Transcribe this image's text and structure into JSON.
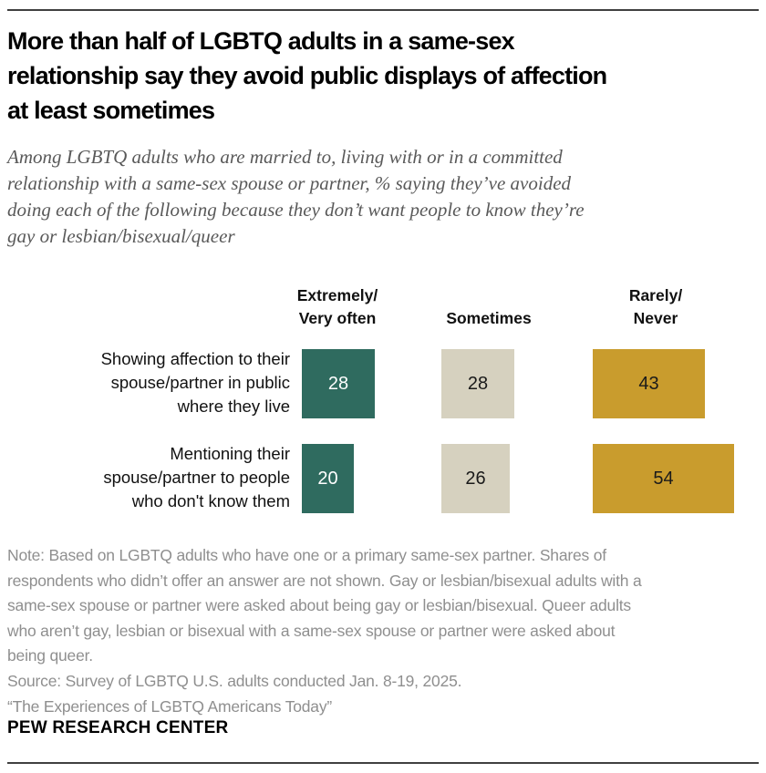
{
  "title": {
    "lines": [
      "More than half of LGBTQ adults in a same-sex",
      "relationship say they avoid public displays of affection",
      "at least sometimes"
    ]
  },
  "subtitle": {
    "lines": [
      "Among LGBTQ adults who are married to, living with or in a committed",
      "relationship with a same-sex spouse or partner, % saying they’ve avoided",
      "doing each of the following because they don’t want people to know they’re",
      "gay or lesbian/bisexual/queer"
    ]
  },
  "chart": {
    "col_headers": [
      {
        "lines": [
          "Extremely/",
          "Very often"
        ]
      },
      {
        "lines": [
          "Sometimes"
        ]
      },
      {
        "lines": [
          "Rarely/",
          "Never"
        ]
      }
    ],
    "rows": [
      {
        "label_lines": [
          "Showing affection to their",
          "spouse/partner in public",
          "where they live"
        ],
        "values": [
          28,
          28,
          43
        ]
      },
      {
        "label_lines": [
          "Mentioning their",
          "spouse/partner to people",
          "who don't know them"
        ],
        "values": [
          20,
          26,
          54
        ]
      }
    ]
  },
  "colors": {
    "extremely_very_often": "#2f6b5f",
    "sometimes": "#d6d1bf",
    "rarely_never": "#c99c2d",
    "value_on_dark": "#ffffff",
    "value_on_light": "#1a1a1a"
  },
  "note": {
    "lines": [
      "Note: Based on LGBTQ adults who have one or a primary same-sex partner. Shares of",
      "respondents who didn’t offer an answer are not shown. Gay or lesbian/bisexual adults with a",
      "same-sex spouse or partner were asked about being gay or lesbian/bisexual. Queer adults",
      "who aren’t gay, lesbian or bisexual with a same-sex spouse or partner were asked about",
      "being queer."
    ]
  },
  "source": {
    "line": "Source: Survey of LGBTQ U.S. adults conducted Jan. 8-19, 2025."
  },
  "quote": {
    "line": "“The Experiences of LGBTQ Americans Today”"
  },
  "footer": {
    "brand": "PEW RESEARCH CENTER"
  },
  "chart_data": {
    "type": "bar",
    "title": "More than half of LGBTQ adults in a same-sex relationship say they avoid public displays of affection at least sometimes",
    "subtitle": "Among LGBTQ adults who are married to, living with or in a committed relationship with a same-sex spouse or partner, % saying they’ve avoided doing each of the following because they don’t want people to know they’re gay or lesbian/bisexual/queer",
    "unit": "%",
    "categories": [
      "Showing affection to their spouse/partner in public where they live",
      "Mentioning their spouse/partner to people who don't know them"
    ],
    "series": [
      {
        "name": "Extremely/Very often",
        "values": [
          28,
          20
        ],
        "color": "#2f6b5f"
      },
      {
        "name": "Sometimes",
        "values": [
          28,
          26
        ],
        "color": "#d6d1bf"
      },
      {
        "name": "Rarely/Never",
        "values": [
          43,
          54
        ],
        "color": "#c99c2d"
      }
    ],
    "layout": "horizontal blocks per category row, block width proportional to value, value labels inside blocks, column headers above, grid off, no axes"
  }
}
